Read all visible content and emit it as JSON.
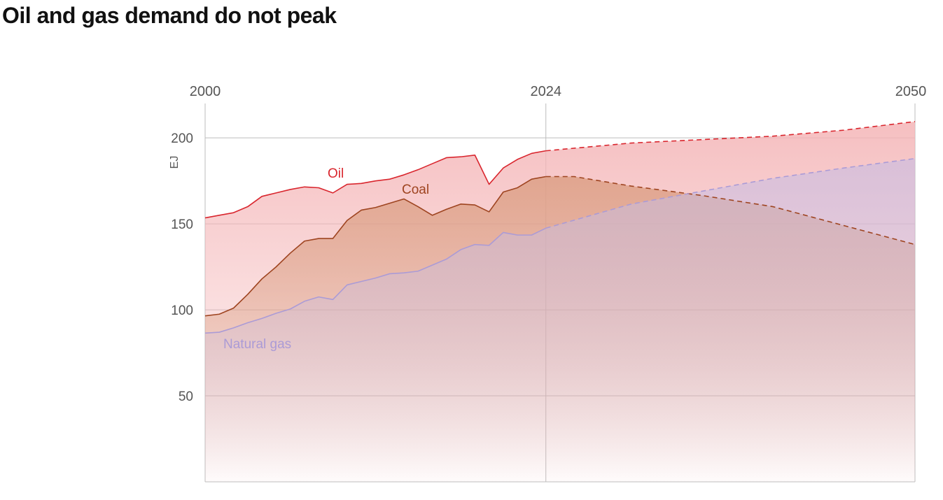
{
  "title": "Oil and gas demand do not peak",
  "chart_data": {
    "type": "area",
    "title": "Oil and gas demand do not peak",
    "xlabel": "",
    "ylabel": "EJ",
    "xlim": [
      2000,
      2050
    ],
    "ylim": [
      0,
      220
    ],
    "x_ticks": [
      "2000",
      "2024",
      "2050"
    ],
    "y_ticks": [
      "50",
      "100",
      "150",
      "200"
    ],
    "y_tick_values": [
      50,
      100,
      150,
      200
    ],
    "grid": true,
    "projection_start": 2024,
    "series": [
      {
        "name": "Oil",
        "color": "#d9262e",
        "fill": "#f4b4b6",
        "historical": [
          [
            2000,
            153.5
          ],
          [
            2001,
            155
          ],
          [
            2002,
            156.5
          ],
          [
            2003,
            160
          ],
          [
            2004,
            166
          ],
          [
            2005,
            168
          ],
          [
            2006,
            170
          ],
          [
            2007,
            171.5
          ],
          [
            2008,
            171
          ],
          [
            2009,
            168
          ],
          [
            2010,
            173
          ],
          [
            2011,
            173.5
          ],
          [
            2012,
            175
          ],
          [
            2013,
            176
          ],
          [
            2014,
            178.5
          ],
          [
            2015,
            181.5
          ],
          [
            2016,
            185
          ],
          [
            2017,
            188.5
          ],
          [
            2018,
            189
          ],
          [
            2019,
            190
          ],
          [
            2020,
            173
          ],
          [
            2021,
            182.5
          ],
          [
            2022,
            187.5
          ],
          [
            2023,
            191
          ],
          [
            2024,
            192.5
          ]
        ],
        "projection": [
          [
            2024,
            192.5
          ],
          [
            2030,
            197
          ],
          [
            2035,
            199
          ],
          [
            2040,
            201
          ],
          [
            2045,
            204.5
          ],
          [
            2050,
            209.5
          ]
        ]
      },
      {
        "name": "Coal",
        "color": "#9e4420",
        "fill": "#d99a7c",
        "historical": [
          [
            2000,
            96.5
          ],
          [
            2001,
            97.5
          ],
          [
            2002,
            101
          ],
          [
            2003,
            109
          ],
          [
            2004,
            118
          ],
          [
            2005,
            125
          ],
          [
            2006,
            133
          ],
          [
            2007,
            140
          ],
          [
            2008,
            141.5
          ],
          [
            2009,
            141.5
          ],
          [
            2010,
            152
          ],
          [
            2011,
            158
          ],
          [
            2012,
            159.5
          ],
          [
            2013,
            162
          ],
          [
            2014,
            164.5
          ],
          [
            2015,
            160
          ],
          [
            2016,
            155
          ],
          [
            2017,
            158.5
          ],
          [
            2018,
            161.5
          ],
          [
            2019,
            161
          ],
          [
            2020,
            157
          ],
          [
            2021,
            168.5
          ],
          [
            2022,
            171
          ],
          [
            2023,
            176
          ],
          [
            2024,
            177.5
          ]
        ],
        "projection": [
          [
            2024,
            177.5
          ],
          [
            2026,
            177.5
          ],
          [
            2030,
            172
          ],
          [
            2035,
            166.5
          ],
          [
            2040,
            160
          ],
          [
            2045,
            149
          ],
          [
            2050,
            138
          ]
        ]
      },
      {
        "name": "Natural gas",
        "color": "#ab9bd6",
        "fill": "#c6bce4",
        "historical": [
          [
            2000,
            86.5
          ],
          [
            2001,
            87
          ],
          [
            2002,
            89.5
          ],
          [
            2003,
            92.5
          ],
          [
            2004,
            95
          ],
          [
            2005,
            98
          ],
          [
            2006,
            100.5
          ],
          [
            2007,
            105
          ],
          [
            2008,
            107.5
          ],
          [
            2009,
            106
          ],
          [
            2010,
            114.5
          ],
          [
            2011,
            116.5
          ],
          [
            2012,
            118.5
          ],
          [
            2013,
            121
          ],
          [
            2014,
            121.5
          ],
          [
            2015,
            122.5
          ],
          [
            2016,
            126
          ],
          [
            2017,
            129.5
          ],
          [
            2018,
            135
          ],
          [
            2019,
            138
          ],
          [
            2020,
            137.5
          ],
          [
            2021,
            145
          ],
          [
            2022,
            143.5
          ],
          [
            2023,
            143.5
          ],
          [
            2024,
            147.5
          ]
        ],
        "projection": [
          [
            2024,
            147.5
          ],
          [
            2030,
            161.5
          ],
          [
            2035,
            169
          ],
          [
            2040,
            176.5
          ],
          [
            2045,
            182.5
          ],
          [
            2050,
            188
          ]
        ]
      }
    ]
  }
}
